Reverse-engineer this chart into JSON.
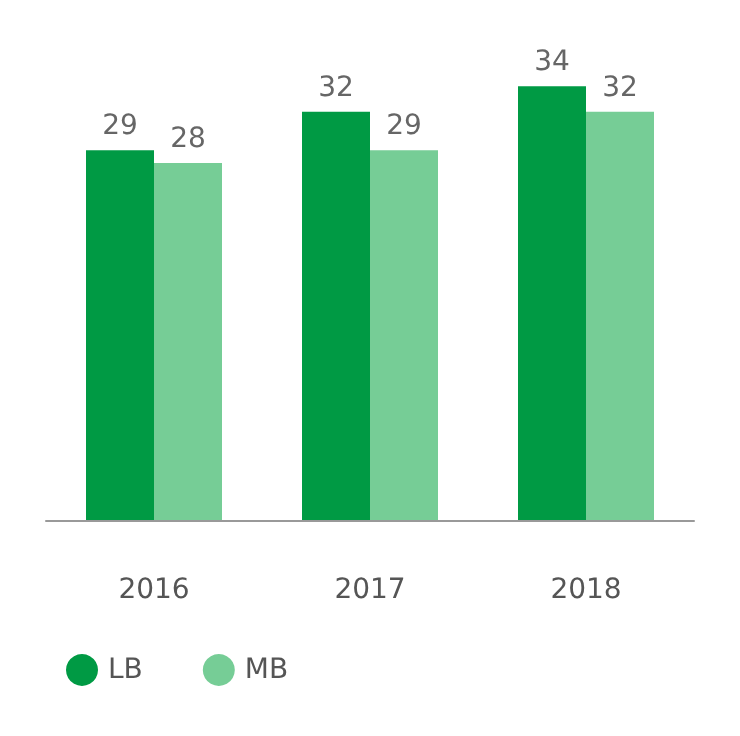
{
  "chart_data": {
    "type": "bar",
    "categories": [
      "2016",
      "2017",
      "2018"
    ],
    "series": [
      {
        "name": "LB",
        "color": "#009a44",
        "values": [
          29,
          32,
          34
        ]
      },
      {
        "name": "MB",
        "color": "#76cd96",
        "values": [
          28,
          29,
          32
        ]
      }
    ],
    "data_labels": true,
    "legend": "bottom left",
    "grid": false
  }
}
